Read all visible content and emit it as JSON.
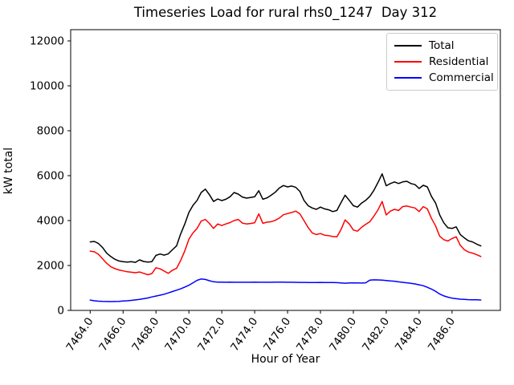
{
  "chart_data": {
    "type": "line",
    "title": "Timeseries Load for rural rhs0_1247  Day 312",
    "xlabel": "Hour of Year",
    "ylabel": "kW total",
    "xlim": [
      7462.8125,
      7488.9375
    ],
    "ylim": [
      0,
      12500
    ],
    "x_ticks": [
      7464,
      7466,
      7468,
      7470,
      7472,
      7474,
      7476,
      7478,
      7480,
      7482,
      7484,
      7486
    ],
    "x_tick_labels": [
      "7464.0",
      "7466.0",
      "7468.0",
      "7470.0",
      "7472.0",
      "7474.0",
      "7476.0",
      "7478.0",
      "7480.0",
      "7482.0",
      "7484.0",
      "7486.0"
    ],
    "y_ticks": [
      0,
      2000,
      4000,
      6000,
      8000,
      10000,
      12000
    ],
    "y_tick_labels": [
      "0",
      "2000",
      "4000",
      "6000",
      "8000",
      "10000",
      "12000"
    ],
    "grid": false,
    "legend_position": "upper right",
    "x_start": 7464.0,
    "x_step": 0.25,
    "series": [
      {
        "name": "Total",
        "color": "#000000",
        "values": [
          3050,
          3070,
          2980,
          2800,
          2550,
          2400,
          2280,
          2200,
          2170,
          2150,
          2170,
          2140,
          2250,
          2180,
          2150,
          2170,
          2450,
          2510,
          2460,
          2520,
          2700,
          2870,
          3400,
          3850,
          4360,
          4680,
          4900,
          5250,
          5400,
          5150,
          4850,
          4960,
          4890,
          4950,
          5060,
          5250,
          5180,
          5050,
          5000,
          5030,
          5060,
          5330,
          4950,
          5010,
          5130,
          5260,
          5450,
          5560,
          5500,
          5540,
          5480,
          5300,
          4900,
          4660,
          4560,
          4500,
          4600,
          4520,
          4480,
          4400,
          4450,
          4800,
          5130,
          4900,
          4660,
          4600,
          4780,
          4900,
          5080,
          5350,
          5700,
          6080,
          5550,
          5650,
          5720,
          5650,
          5720,
          5750,
          5650,
          5600,
          5430,
          5570,
          5500,
          5080,
          4780,
          4250,
          3900,
          3680,
          3650,
          3720,
          3380,
          3230,
          3100,
          3050,
          2950,
          2870
        ]
      },
      {
        "name": "Residential",
        "color": "#ff0000",
        "values": [
          2640,
          2610,
          2500,
          2300,
          2100,
          1950,
          1860,
          1800,
          1760,
          1720,
          1700,
          1680,
          1710,
          1650,
          1590,
          1640,
          1900,
          1850,
          1750,
          1650,
          1790,
          1870,
          2220,
          2650,
          3170,
          3450,
          3650,
          3980,
          4050,
          3870,
          3650,
          3850,
          3780,
          3850,
          3910,
          4000,
          4050,
          3890,
          3850,
          3870,
          3900,
          4300,
          3880,
          3930,
          3950,
          4010,
          4110,
          4260,
          4310,
          4360,
          4420,
          4300,
          4000,
          3690,
          3450,
          3380,
          3420,
          3350,
          3330,
          3290,
          3280,
          3600,
          4030,
          3850,
          3580,
          3530,
          3700,
          3830,
          3950,
          4200,
          4480,
          4850,
          4250,
          4420,
          4500,
          4450,
          4620,
          4650,
          4600,
          4560,
          4400,
          4620,
          4520,
          4100,
          3760,
          3300,
          3150,
          3090,
          3200,
          3280,
          2900,
          2700,
          2600,
          2550,
          2480,
          2400
        ]
      },
      {
        "name": "Commercial",
        "color": "#0000ff",
        "values": [
          460,
          430,
          410,
          400,
          395,
          393,
          398,
          405,
          418,
          430,
          448,
          468,
          490,
          520,
          552,
          600,
          640,
          680,
          722,
          780,
          840,
          900,
          962,
          1040,
          1120,
          1230,
          1340,
          1400,
          1380,
          1320,
          1275,
          1262,
          1258,
          1255,
          1256,
          1254,
          1255,
          1252,
          1253,
          1254,
          1256,
          1255,
          1252,
          1253,
          1255,
          1256,
          1258,
          1257,
          1255,
          1252,
          1250,
          1248,
          1245,
          1242,
          1240,
          1242,
          1245,
          1242,
          1240,
          1238,
          1235,
          1225,
          1212,
          1220,
          1230,
          1225,
          1218,
          1230,
          1350,
          1362,
          1356,
          1350,
          1330,
          1312,
          1300,
          1272,
          1250,
          1230,
          1208,
          1180,
          1140,
          1100,
          1030,
          950,
          850,
          730,
          645,
          590,
          545,
          520,
          500,
          490,
          480,
          475,
          470,
          465
        ]
      }
    ]
  }
}
